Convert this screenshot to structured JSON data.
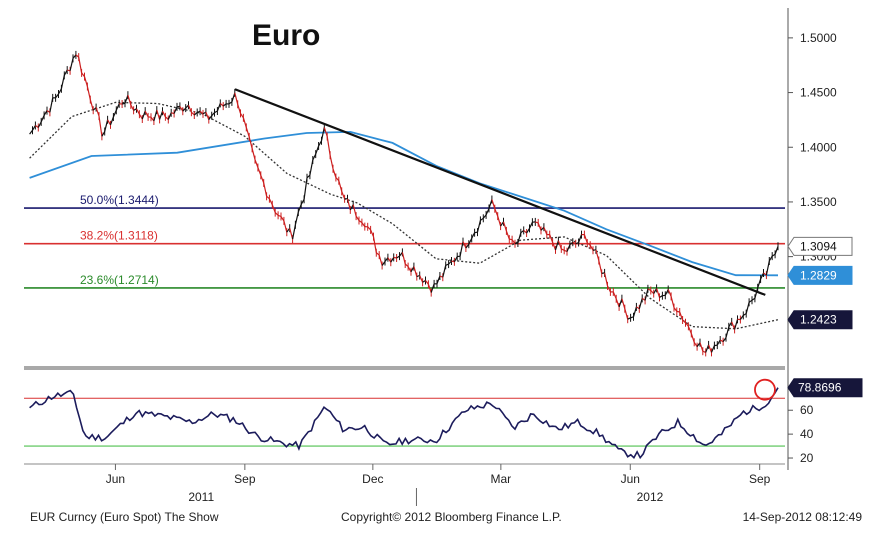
{
  "chart_data": {
    "type": "line",
    "title": "Euro",
    "colors": {
      "price_up": "#111111",
      "price_down": "#cc1f1f",
      "ma_long": "#2f8fd8",
      "ma_short": "#333333",
      "trendline": "#111111",
      "fib_50": "#1a1a6e",
      "fib_38": "#d93030",
      "fib_23": "#2a8a2a",
      "rsi": "#1c1c5c",
      "rsi_upper": "#d93030",
      "rsi_lower": "#4fc04f",
      "highlight_circle": "#e02020",
      "tag_dark": "#16163a",
      "tag_blue": "#2f8fd8"
    },
    "price_axis": {
      "ylim": [
        1.2,
        1.52
      ],
      "ticks": [
        "1.5000",
        "1.4500",
        "1.4000",
        "1.3500",
        "1.3000"
      ],
      "last_labels": [
        {
          "label": "1.3094",
          "value": 1.3094,
          "style": "white"
        },
        {
          "label": "1.2829",
          "value": 1.2829,
          "style": "blue"
        },
        {
          "label": "1.2423",
          "value": 1.2423,
          "style": "dark"
        }
      ]
    },
    "fib_levels": [
      {
        "label": "50.0%(1.3444)",
        "value": 1.3444,
        "color_key": "fib_50"
      },
      {
        "label": "38.2%(1.3118)",
        "value": 1.3118,
        "color_key": "fib_38"
      },
      {
        "label": "23.6%(1.2714)",
        "value": 1.2714,
        "color_key": "fib_23"
      }
    ],
    "price_series": {
      "name": "EUR Curncy",
      "x": [
        "2011-04-01",
        "2011-04-20",
        "2011-05-04",
        "2011-05-23",
        "2011-06-07",
        "2011-06-20",
        "2011-07-08",
        "2011-07-22",
        "2011-08-05",
        "2011-08-26",
        "2011-09-08",
        "2011-09-22",
        "2011-10-04",
        "2011-10-27",
        "2011-11-10",
        "2011-11-25",
        "2011-12-07",
        "2011-12-20",
        "2012-01-13",
        "2012-02-08",
        "2012-02-24",
        "2012-03-10",
        "2012-03-24",
        "2012-04-15",
        "2012-05-01",
        "2012-05-18",
        "2012-06-01",
        "2012-06-15",
        "2012-06-29",
        "2012-07-24",
        "2012-08-10",
        "2012-08-23",
        "2012-09-06",
        "2012-09-14"
      ],
      "values": [
        1.412,
        1.445,
        1.488,
        1.412,
        1.445,
        1.43,
        1.428,
        1.44,
        1.426,
        1.448,
        1.385,
        1.345,
        1.318,
        1.417,
        1.352,
        1.334,
        1.297,
        1.303,
        1.271,
        1.318,
        1.348,
        1.308,
        1.33,
        1.304,
        1.319,
        1.271,
        1.245,
        1.268,
        1.265,
        1.211,
        1.233,
        1.252,
        1.285,
        1.3094
      ]
    },
    "ma_long": {
      "x": [
        "2011-04-01",
        "2011-05-15",
        "2011-07-15",
        "2011-09-15",
        "2011-10-15",
        "2011-11-15",
        "2011-12-15",
        "2012-01-15",
        "2012-02-15",
        "2012-03-15",
        "2012-04-15",
        "2012-05-15",
        "2012-06-15",
        "2012-07-15",
        "2012-08-15",
        "2012-09-14"
      ],
      "values": [
        1.372,
        1.392,
        1.395,
        1.408,
        1.413,
        1.414,
        1.404,
        1.383,
        1.367,
        1.355,
        1.342,
        1.325,
        1.31,
        1.295,
        1.283,
        1.2829
      ]
    },
    "ma_short": {
      "x": [
        "2011-04-01",
        "2011-05-01",
        "2011-06-01",
        "2011-07-01",
        "2011-08-01",
        "2011-09-01",
        "2011-10-01",
        "2011-11-01",
        "2011-11-20",
        "2011-12-15",
        "2012-01-15",
        "2012-02-15",
        "2012-03-15",
        "2012-04-15",
        "2012-05-15",
        "2012-06-15",
        "2012-07-15",
        "2012-08-15",
        "2012-09-14"
      ],
      "values": [
        1.39,
        1.428,
        1.441,
        1.44,
        1.431,
        1.41,
        1.376,
        1.357,
        1.349,
        1.33,
        1.298,
        1.294,
        1.315,
        1.318,
        1.301,
        1.262,
        1.236,
        1.234,
        1.2423
      ]
    },
    "trendline": {
      "x": [
        "2011-08-25",
        "2012-09-05"
      ],
      "values": [
        1.453,
        1.265
      ]
    },
    "rsi": {
      "ylim": [
        15,
        92
      ],
      "ticks": [
        "80",
        "60",
        "40",
        "20"
      ],
      "upper": 70,
      "lower": 30,
      "last_label": "78.8696",
      "last_value": 78.8696,
      "x": [
        "2011-04-01",
        "2011-04-18",
        "2011-05-02",
        "2011-05-10",
        "2011-05-25",
        "2011-06-15",
        "2011-07-05",
        "2011-07-25",
        "2011-08-10",
        "2011-08-25",
        "2011-09-10",
        "2011-09-25",
        "2011-10-10",
        "2011-10-28",
        "2011-11-10",
        "2011-11-25",
        "2011-12-10",
        "2011-12-25",
        "2012-01-15",
        "2012-02-05",
        "2012-02-24",
        "2012-03-10",
        "2012-03-24",
        "2012-04-10",
        "2012-04-25",
        "2012-05-10",
        "2012-05-25",
        "2012-06-08",
        "2012-06-20",
        "2012-07-05",
        "2012-07-24",
        "2012-08-05",
        "2012-08-20",
        "2012-09-01",
        "2012-09-08",
        "2012-09-14"
      ],
      "values": [
        62,
        72,
        74,
        38,
        37,
        58,
        55,
        50,
        57,
        52,
        38,
        33,
        30,
        63,
        44,
        46,
        31,
        35,
        35,
        60,
        66,
        45,
        57,
        44,
        50,
        40,
        25,
        22,
        38,
        50,
        30,
        40,
        58,
        63,
        68,
        78.87
      ]
    },
    "x_axis": {
      "xlim": [
        "2011-03-28",
        "2012-09-19"
      ],
      "month_ticks": [
        {
          "label": "Jun",
          "date": "2011-06-01"
        },
        {
          "label": "Sep",
          "date": "2011-09-01"
        },
        {
          "label": "Dec",
          "date": "2011-12-01"
        },
        {
          "label": "Mar",
          "date": "2012-03-01"
        },
        {
          "label": "Jun",
          "date": "2012-06-01"
        },
        {
          "label": "Sep",
          "date": "2012-09-01"
        }
      ],
      "year_labels": [
        {
          "label": "2011",
          "date": "2011-08-01"
        },
        {
          "label": "2012",
          "date": "2012-06-15"
        }
      ]
    }
  },
  "footer": {
    "left": "EUR Curncy (Euro Spot) The Show",
    "center": "Copyright© 2012 Bloomberg Finance L.P.",
    "right": "14-Sep-2012 08:12:49"
  }
}
